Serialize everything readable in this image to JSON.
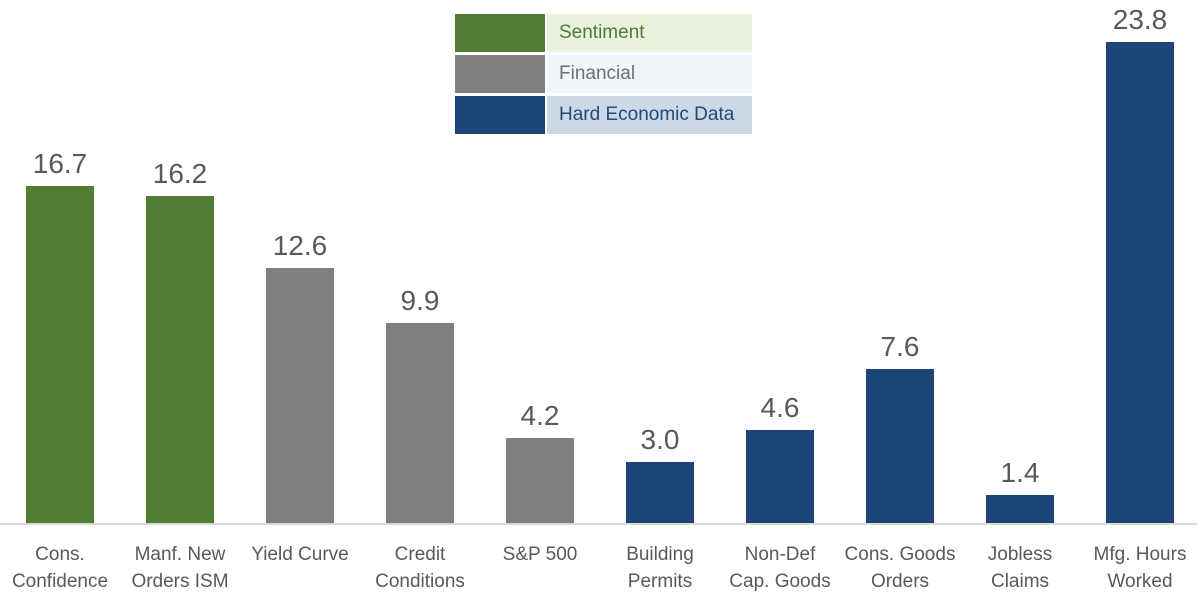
{
  "chart_data": {
    "type": "bar",
    "title": "",
    "xlabel": "",
    "ylabel": "",
    "ylim": [
      0,
      23.8
    ],
    "grid": false,
    "axes_visible": false,
    "legend_position": "top-center",
    "categories": [
      "Cons. Confidence",
      "Manf. New Orders ISM",
      "Yield Curve",
      "Credit Conditions",
      "S&P 500",
      "Building Permits",
      "Non-Def Cap. Goods",
      "Cons. Goods Orders",
      "Jobless Claims",
      "Mfg. Hours Worked"
    ],
    "category_lines": [
      [
        "Cons.",
        "Confidence"
      ],
      [
        "Manf. New",
        "Orders ISM"
      ],
      [
        "Yield Curve"
      ],
      [
        "Credit",
        "Conditions"
      ],
      [
        "S&P 500"
      ],
      [
        "Building",
        "Permits"
      ],
      [
        "Non-Def",
        "Cap. Goods"
      ],
      [
        "Cons. Goods",
        "Orders"
      ],
      [
        "Jobless",
        "Claims"
      ],
      [
        "Mfg. Hours",
        "Worked"
      ]
    ],
    "values": [
      16.7,
      16.2,
      12.6,
      9.9,
      4.2,
      3.0,
      4.6,
      7.6,
      1.4,
      23.8
    ],
    "value_labels": [
      "16.7",
      "16.2",
      "12.6",
      "9.9",
      "4.2",
      "3.0",
      "4.6",
      "7.6",
      "1.4",
      "23.8"
    ],
    "groups": [
      "sentiment",
      "sentiment",
      "financial",
      "financial",
      "financial",
      "hard",
      "hard",
      "hard",
      "hard",
      "hard"
    ],
    "group_colors": {
      "sentiment": "#537c34",
      "financial": "#808080",
      "hard": "#1b4576"
    }
  },
  "legend": {
    "items": [
      {
        "label": "Sentiment",
        "swatch": "#537c34",
        "label_bg": "#eaf1dd",
        "label_color": "#4c7c34"
      },
      {
        "label": "Financial",
        "swatch": "#808080",
        "label_bg": "#f3f6f8",
        "label_color": "#6f6f6f"
      },
      {
        "label": "Hard Economic Data",
        "swatch": "#1b4576",
        "label_bg": "#ccd9e5",
        "label_color": "#1e4a7c"
      }
    ]
  },
  "colors": {
    "value_label": "#595959",
    "category_label": "#595959",
    "baseline": "#d9d9d9",
    "background": "#ffffff"
  }
}
